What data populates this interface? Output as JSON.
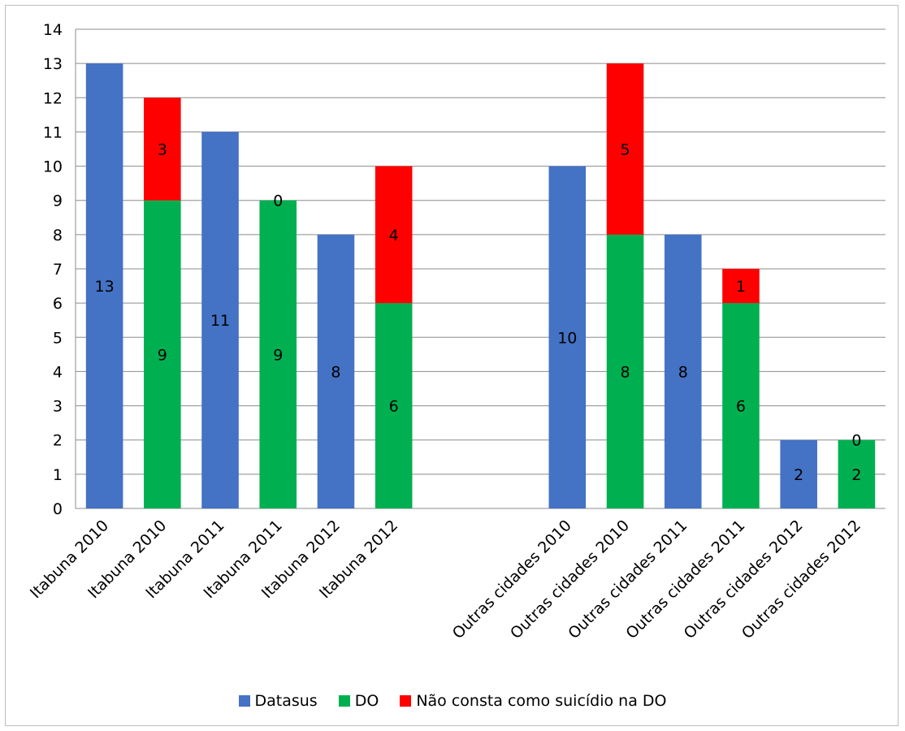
{
  "chart_data": {
    "type": "bar",
    "stacked": true,
    "categories": [
      "Itabuna 2010",
      "Itabuna 2010",
      "Itabuna 2011",
      "Itabuna 2011",
      "Itabuna 2012",
      "Itabuna 2012",
      "",
      "",
      "Outras cidades 2010",
      "Outras cidades 2010",
      "Outras cidades 2011",
      "Outras cidades 2011",
      "Outras cidades 2012",
      "Outras cidades 2012"
    ],
    "series": [
      {
        "name": "Datasus",
        "color": "#4472C4",
        "values": [
          13,
          null,
          11,
          null,
          8,
          null,
          null,
          null,
          10,
          null,
          8,
          null,
          2,
          null
        ]
      },
      {
        "name": "DO",
        "color": "#00B050",
        "values": [
          null,
          9,
          null,
          9,
          null,
          6,
          null,
          null,
          null,
          8,
          null,
          6,
          null,
          2
        ]
      },
      {
        "name": "Não consta como suicídio na DO",
        "color": "#FF0000",
        "values": [
          null,
          3,
          null,
          0,
          null,
          4,
          null,
          null,
          null,
          5,
          null,
          1,
          null,
          0
        ]
      }
    ],
    "ylim": [
      0,
      14
    ],
    "yticks": [
      "0",
      "1",
      "2",
      "3",
      "4",
      "5",
      "6",
      "7",
      "8",
      "9",
      "10",
      "11",
      "12",
      "13",
      "14"
    ],
    "grid": true,
    "legend_position": "bottom"
  }
}
